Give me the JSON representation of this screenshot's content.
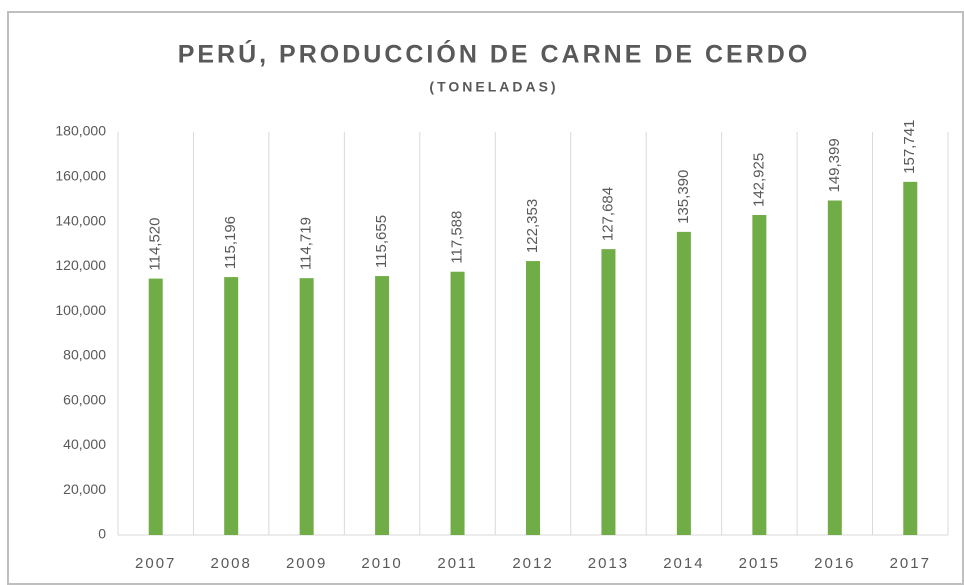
{
  "chart_data": {
    "type": "bar",
    "title": "PERÚ, PRODUCCIÓN DE CARNE DE CERDO",
    "subtitle": "(TONELADAS)",
    "categories": [
      "2007",
      "2008",
      "2009",
      "2010",
      "2011",
      "2012",
      "2013",
      "2014",
      "2015",
      "2016",
      "2017"
    ],
    "values": [
      114520,
      115196,
      114719,
      115655,
      117588,
      122353,
      127684,
      135390,
      142925,
      149399,
      157741
    ],
    "value_labels": [
      "114,520",
      "115,196",
      "114,719",
      "115,655",
      "117,588",
      "122,353",
      "127,684",
      "135,390",
      "142,925",
      "149,399",
      "157,741"
    ],
    "color": "#70ad47",
    "ylim": [
      0,
      180000
    ],
    "yticks": [
      0,
      {
        "value": 20000,
        "label": "20,000"
      },
      {
        "value": 40000,
        "label": "40,000"
      },
      {
        "value": 60000,
        "label": "60,000"
      },
      {
        "value": 80000,
        "label": "80,000"
      },
      {
        "value": 100000,
        "label": "100,000"
      },
      {
        "value": 120000,
        "label": "120,000"
      },
      {
        "value": 140000,
        "label": "140,000"
      },
      {
        "value": 160000,
        "label": "160,000"
      },
      {
        "value": 180000,
        "label": "180,000"
      }
    ]
  }
}
